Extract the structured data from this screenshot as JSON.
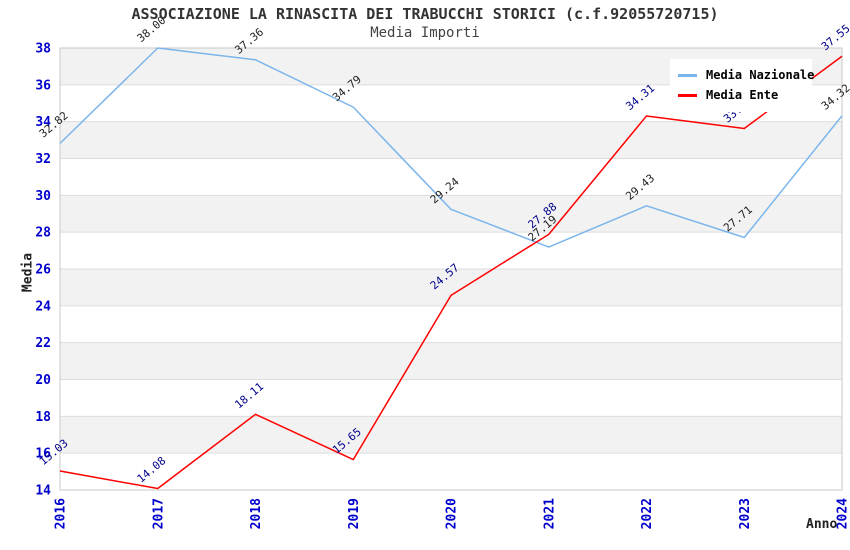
{
  "header": {
    "title": "ASSOCIAZIONE LA RINASCITA DEI TRABUCCHI STORICI (c.f.92055720715)",
    "subtitle": "Media Importi"
  },
  "chart_data": {
    "type": "line",
    "x": [
      2016,
      2017,
      2018,
      2019,
      2020,
      2021,
      2022,
      2023,
      2024
    ],
    "series": [
      {
        "name": "Media Nazionale",
        "color": "#7cb5ec",
        "label_color": "#222222",
        "values": [
          32.82,
          38.0,
          37.36,
          34.79,
          29.24,
          27.19,
          29.43,
          27.71,
          34.32
        ]
      },
      {
        "name": "Media Ente",
        "color": "#ff0000",
        "label_color": "#00008b",
        "values": [
          15.03,
          14.08,
          18.11,
          15.65,
          24.57,
          27.88,
          34.31,
          33.63,
          37.55
        ]
      }
    ],
    "xlabel": "Anno",
    "ylabel": "Media",
    "ylim": [
      14,
      38
    ],
    "ytick_step": 2,
    "grid": true,
    "legend_position": "top-right",
    "band_color": "#f2f2f2",
    "grid_color": "#dddddd",
    "border_color": "#c8c8c8",
    "axis_tick_color": "#0000cd",
    "value_label_decimals": 2
  }
}
